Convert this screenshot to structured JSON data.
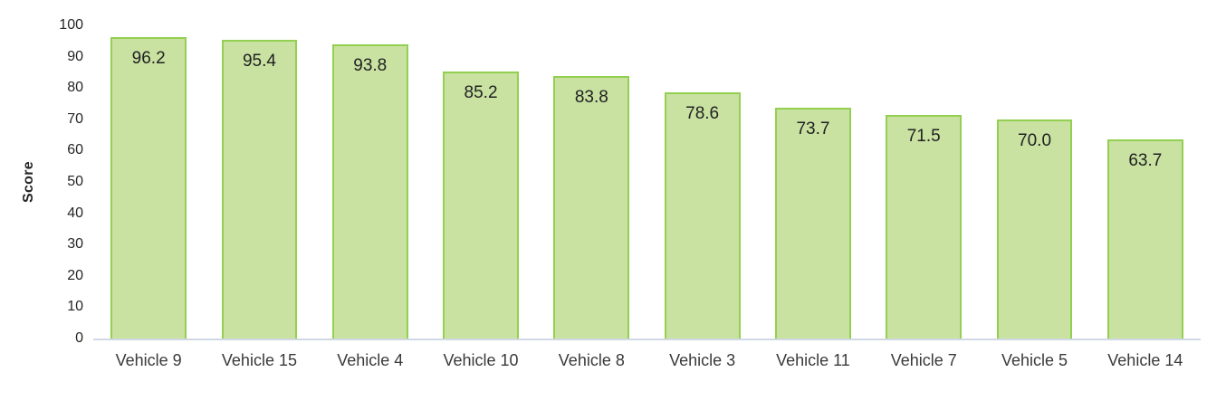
{
  "chart_data": {
    "type": "bar",
    "title": "",
    "categories": [
      "Vehicle 9",
      "Vehicle 15",
      "Vehicle 4",
      "Vehicle 10",
      "Vehicle 8",
      "Vehicle 3",
      "Vehicle 11",
      "Vehicle 7",
      "Vehicle 5",
      "Vehicle 14"
    ],
    "values": [
      96.2,
      95.4,
      93.8,
      85.2,
      83.8,
      78.6,
      73.7,
      71.5,
      70.0,
      63.7
    ],
    "value_labels": [
      "96.2",
      "95.4",
      "93.8",
      "85.2",
      "83.8",
      "78.6",
      "73.7",
      "71.5",
      "70.0",
      "63.7"
    ],
    "xlabel": "",
    "ylabel": "Score",
    "ylim": [
      0,
      100
    ],
    "yticks": [
      0,
      10,
      20,
      30,
      40,
      50,
      60,
      70,
      80,
      90,
      100
    ],
    "grid": false,
    "legend": false,
    "colors": {
      "bar_fill": "#c9e2a2",
      "bar_border": "#93cf50",
      "axis_line": "#d0d8e4",
      "tick_text": "#262626",
      "value_text": "#212121",
      "category_text": "#3a3a3a"
    }
  }
}
